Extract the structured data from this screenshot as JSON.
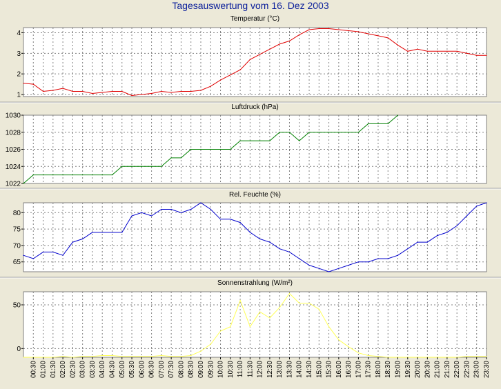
{
  "page": {
    "title": "Tagesauswertung vom 16. Dez 2003"
  },
  "time_labels": [
    "00:30",
    "01:00",
    "01:30",
    "02:00",
    "02:30",
    "03:00",
    "03:30",
    "04:00",
    "04:30",
    "05:00",
    "05:30",
    "06:00",
    "06:30",
    "07:00",
    "07:30",
    "08:00",
    "08:30",
    "09:00",
    "09:30",
    "10:00",
    "10:30",
    "11:00",
    "11:30",
    "12:00",
    "12:30",
    "13:00",
    "13:30",
    "14:00",
    "14:30",
    "15:00",
    "15:30",
    "16:00",
    "16:30",
    "17:00",
    "17:30",
    "18:00",
    "18:30",
    "19:00",
    "19:30",
    "20:00",
    "20:30",
    "21:00",
    "21:30",
    "22:00",
    "22:30",
    "23:00",
    "23:30"
  ],
  "chart_data": [
    {
      "type": "line",
      "title": "Temperatur (°C)",
      "color": "#e00000",
      "ylim": [
        0.9,
        4.25
      ],
      "yticks": [
        1,
        2,
        3,
        4
      ],
      "x": [
        "00:00",
        "00:30",
        "01:00",
        "01:30",
        "02:00",
        "02:30",
        "03:00",
        "03:30",
        "04:00",
        "04:30",
        "05:00",
        "05:30",
        "06:00",
        "06:30",
        "07:00",
        "07:30",
        "08:00",
        "08:30",
        "09:00",
        "09:30",
        "10:00",
        "10:30",
        "11:00",
        "11:30",
        "12:00",
        "12:30",
        "13:00",
        "13:30",
        "14:00",
        "14:30",
        "15:00",
        "15:30",
        "16:00",
        "16:30",
        "17:00",
        "17:30",
        "18:00",
        "18:30",
        "19:00",
        "19:30",
        "20:00",
        "20:30",
        "21:00",
        "21:30",
        "22:00",
        "22:30",
        "23:00",
        "23:30"
      ],
      "values": [
        1.55,
        1.5,
        1.15,
        1.2,
        1.3,
        1.15,
        1.15,
        1.05,
        1.1,
        1.15,
        1.15,
        0.95,
        1.0,
        1.05,
        1.15,
        1.1,
        1.15,
        1.15,
        1.2,
        1.4,
        1.7,
        1.95,
        2.2,
        2.7,
        2.95,
        3.2,
        3.45,
        3.6,
        3.9,
        4.15,
        4.2,
        4.2,
        4.15,
        4.1,
        4.05,
        3.95,
        3.85,
        3.75,
        3.4,
        3.1,
        3.2,
        3.1,
        3.1,
        3.1,
        3.1,
        3.0,
        2.9,
        2.9
      ]
    },
    {
      "type": "line",
      "title": "Luftdruck (hPa)",
      "color": "#008000",
      "ylim": [
        1022,
        1030
      ],
      "yticks": [
        1022,
        1024,
        1026,
        1028,
        1030
      ],
      "x": [
        "00:00",
        "00:30",
        "01:00",
        "01:30",
        "02:00",
        "02:30",
        "03:00",
        "03:30",
        "04:00",
        "04:30",
        "05:00",
        "05:30",
        "06:00",
        "06:30",
        "07:00",
        "07:30",
        "08:00",
        "08:30",
        "09:00",
        "09:30",
        "10:00",
        "10:30",
        "11:00",
        "11:30",
        "12:00",
        "12:30",
        "13:00",
        "13:30",
        "14:00",
        "14:30",
        "15:00",
        "15:30",
        "16:00",
        "16:30",
        "17:00",
        "17:30",
        "18:00",
        "18:30",
        "19:00"
      ],
      "values": [
        1022,
        1023,
        1023,
        1023,
        1023,
        1023,
        1023,
        1023,
        1023,
        1023,
        1024,
        1024,
        1024,
        1024,
        1024,
        1025,
        1025,
        1026,
        1026,
        1026,
        1026,
        1026,
        1027,
        1027,
        1027,
        1027,
        1028,
        1028,
        1027,
        1028,
        1028,
        1028,
        1028,
        1028,
        1028,
        1029,
        1029,
        1029,
        1030
      ]
    },
    {
      "type": "line",
      "title": "Rel. Feuchte (%)",
      "color": "#0000cc",
      "ylim": [
        62,
        83
      ],
      "yticks": [
        65,
        70,
        75,
        80
      ],
      "x": [
        "00:00",
        "00:30",
        "01:00",
        "01:30",
        "02:00",
        "02:30",
        "03:00",
        "03:30",
        "04:00",
        "04:30",
        "05:00",
        "05:30",
        "06:00",
        "06:30",
        "07:00",
        "07:30",
        "08:00",
        "08:30",
        "09:00",
        "09:30",
        "10:00",
        "10:30",
        "11:00",
        "11:30",
        "12:00",
        "12:30",
        "13:00",
        "13:30",
        "14:00",
        "14:30",
        "15:00",
        "15:30",
        "16:00",
        "16:30",
        "17:00",
        "17:30",
        "18:00",
        "18:30",
        "19:00",
        "19:30",
        "20:00",
        "20:30",
        "21:00",
        "21:30",
        "22:00",
        "22:30",
        "23:00",
        "23:30"
      ],
      "values": [
        67,
        66,
        68,
        68,
        67,
        71,
        72,
        74,
        74,
        74,
        74,
        79,
        80,
        79,
        81,
        81,
        80,
        81,
        83,
        81,
        78,
        78,
        77,
        74,
        72,
        71,
        69,
        68,
        66,
        64,
        63,
        62,
        63,
        64,
        65,
        65,
        66,
        66,
        67,
        69,
        71,
        71,
        73,
        74,
        76,
        79,
        82,
        83
      ]
    },
    {
      "type": "line",
      "title": "Sonnenstrahlung (W/m²)",
      "color": "#ffff55",
      "ylim": [
        -10,
        65
      ],
      "yticks": [
        0,
        50
      ],
      "x": [
        "00:00",
        "00:30",
        "01:00",
        "01:30",
        "02:00",
        "02:30",
        "03:00",
        "03:30",
        "04:00",
        "04:30",
        "05:00",
        "05:30",
        "06:00",
        "06:30",
        "07:00",
        "07:30",
        "08:00",
        "08:30",
        "09:00",
        "09:30",
        "10:00",
        "10:30",
        "11:00",
        "11:30",
        "12:00",
        "12:30",
        "13:00",
        "13:30",
        "14:00",
        "14:30",
        "15:00",
        "15:30",
        "16:00",
        "16:30",
        "17:00",
        "17:30",
        "18:00",
        "18:30",
        "19:00",
        "19:30",
        "20:00",
        "20:30",
        "21:00",
        "21:30",
        "22:00",
        "22:30",
        "23:00",
        "23:30"
      ],
      "values": [
        -10,
        -10,
        -10,
        -10,
        -9,
        -10,
        -9,
        -9,
        -8,
        -8,
        -9,
        -9,
        -9,
        -9,
        -8,
        -9,
        -9,
        -8,
        -3,
        5,
        20,
        25,
        55,
        25,
        42,
        35,
        47,
        63,
        52,
        52,
        45,
        25,
        10,
        2,
        -5,
        -8,
        -9,
        -10,
        -10,
        -10,
        -10,
        -10,
        -10,
        -10,
        -10,
        -9,
        -9,
        -9
      ]
    }
  ]
}
